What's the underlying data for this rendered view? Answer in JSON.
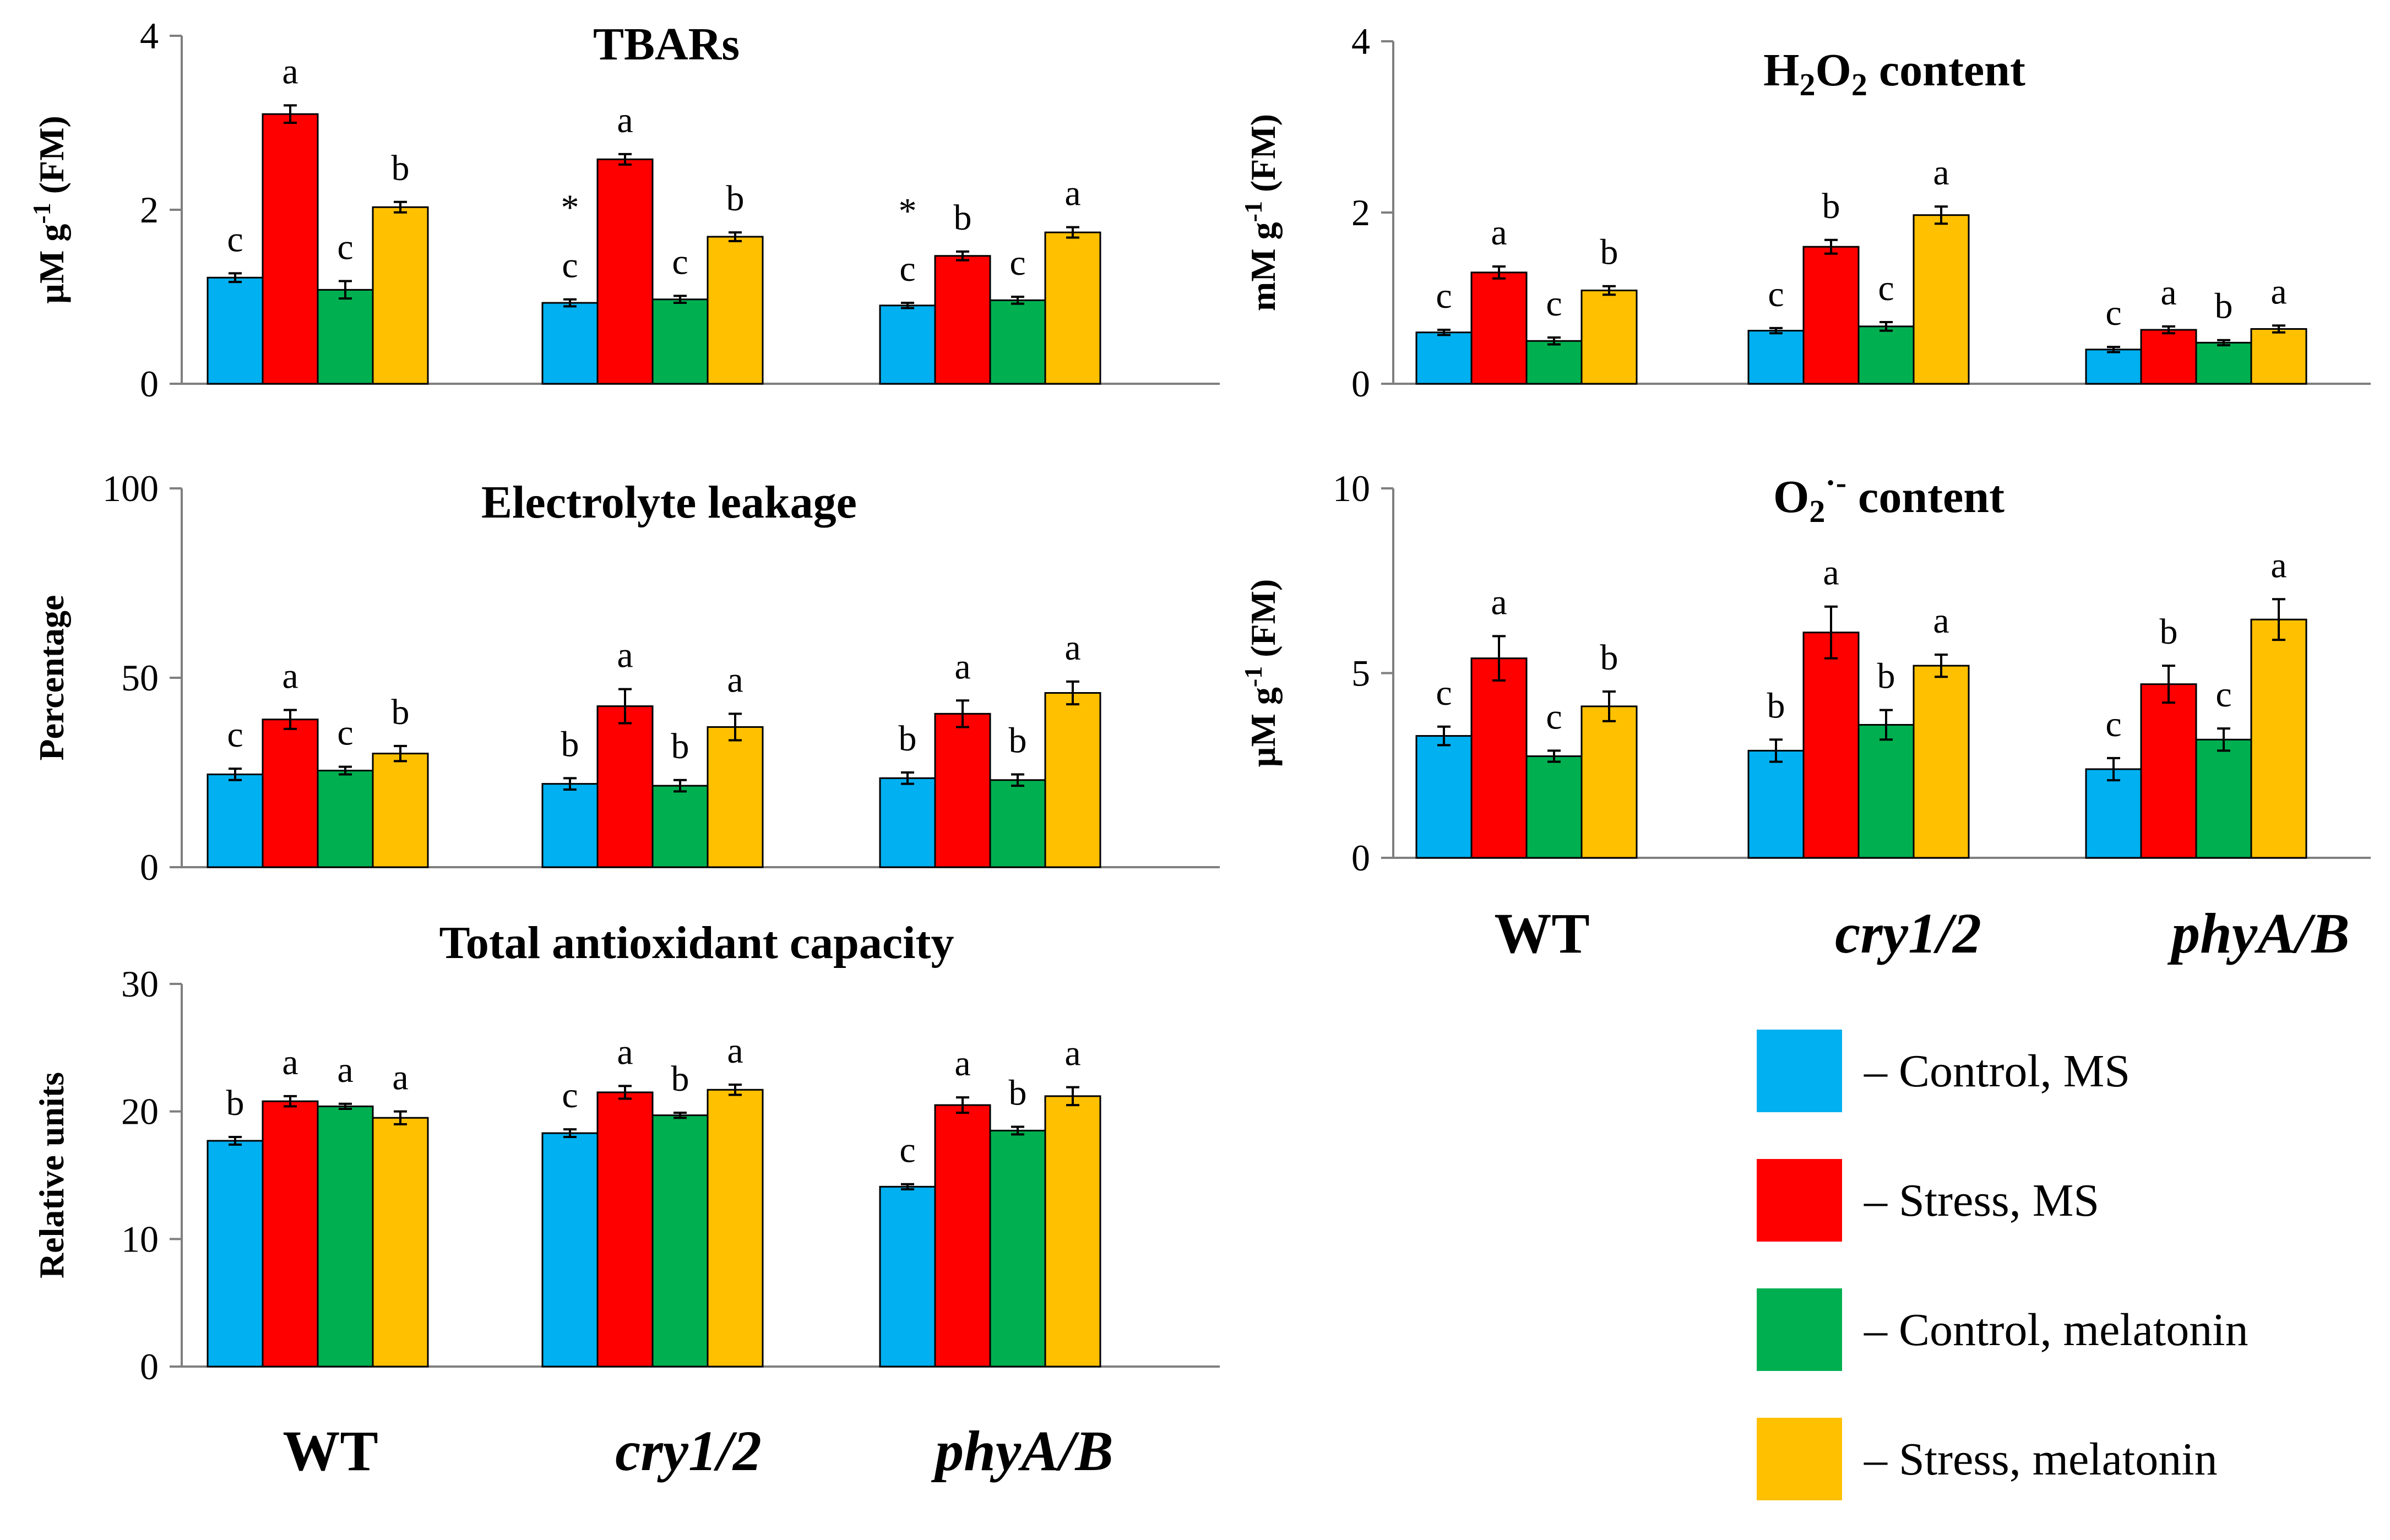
{
  "groups": [
    "WT",
    "cry1/2",
    "phyA/B"
  ],
  "group_italic": [
    false,
    true,
    true
  ],
  "series_colors": [
    "#00B0F0",
    "#FF0000",
    "#00B050",
    "#FFC000"
  ],
  "legend": {
    "items": [
      {
        "label": "– Control, MS",
        "color": "#00B0F0"
      },
      {
        "label": "– Stress, MS",
        "color": "#FF0000"
      },
      {
        "label": "– Control, melatonin",
        "color": "#00B050"
      },
      {
        "label": "– Stress, melatonin",
        "color": "#FFC000"
      }
    ]
  },
  "chart_data": [
    {
      "id": "tbars",
      "type": "bar",
      "title": "TBARs",
      "ylabel_main": "µM g",
      "ylabel_sup": "-1",
      "ylabel_tail": " (FM)",
      "ylim": [
        0,
        4
      ],
      "yticks": [
        0,
        2,
        4
      ],
      "categories": [
        "WT",
        "cry1/2",
        "phyA/B"
      ],
      "series": [
        {
          "name": "Control, MS",
          "values": [
            1.22,
            0.93,
            0.9
          ],
          "errors": [
            0.05,
            0.04,
            0.03
          ],
          "letters": [
            "c",
            "c",
            "c"
          ]
        },
        {
          "name": "Stress, MS",
          "values": [
            3.1,
            2.58,
            1.47
          ],
          "errors": [
            0.1,
            0.06,
            0.05
          ],
          "letters": [
            "a",
            "a",
            "b"
          ]
        },
        {
          "name": "Control, melatonin",
          "values": [
            1.08,
            0.97,
            0.96
          ],
          "errors": [
            0.1,
            0.04,
            0.04
          ],
          "letters": [
            "c",
            "c",
            "c"
          ]
        },
        {
          "name": "Stress, melatonin",
          "values": [
            2.03,
            1.69,
            1.74
          ],
          "errors": [
            0.06,
            0.05,
            0.06
          ],
          "letters": [
            "b",
            "b",
            "a"
          ]
        }
      ],
      "annotations": [
        {
          "text": "*",
          "group": 1,
          "series": 0
        },
        {
          "text": "*",
          "group": 2,
          "series": 0
        }
      ]
    },
    {
      "id": "h2o2",
      "type": "bar",
      "title_main": "H",
      "title_sub1": "2",
      "title_mid": "O",
      "title_sub2": "2",
      "title_tail": " content",
      "ylabel_main": "mM g",
      "ylabel_sup": "-1",
      "ylabel_tail": " (FM)",
      "ylim": [
        0,
        4
      ],
      "yticks": [
        0,
        2,
        4
      ],
      "categories": [
        "WT",
        "cry1/2",
        "phyA/B"
      ],
      "series": [
        {
          "name": "Control, MS",
          "values": [
            0.6,
            0.62,
            0.4
          ],
          "errors": [
            0.03,
            0.03,
            0.03
          ],
          "letters": [
            "c",
            "c",
            "c"
          ]
        },
        {
          "name": "Stress, MS",
          "values": [
            1.3,
            1.6,
            0.63
          ],
          "errors": [
            0.07,
            0.08,
            0.04
          ],
          "letters": [
            "a",
            "b",
            "a"
          ]
        },
        {
          "name": "Control, melatonin",
          "values": [
            0.5,
            0.67,
            0.48
          ],
          "errors": [
            0.04,
            0.05,
            0.03
          ],
          "letters": [
            "c",
            "c",
            "b"
          ]
        },
        {
          "name": "Stress, melatonin",
          "values": [
            1.09,
            1.97,
            0.64
          ],
          "errors": [
            0.05,
            0.1,
            0.04
          ],
          "letters": [
            "b",
            "a",
            "a"
          ]
        }
      ]
    },
    {
      "id": "electrolyte",
      "type": "bar",
      "title": "Electrolyte leakage",
      "ylabel": "Percentage",
      "ylim": [
        0,
        100
      ],
      "yticks": [
        0,
        50,
        100
      ],
      "categories": [
        "WT",
        "cry1/2",
        "phyA/B"
      ],
      "series": [
        {
          "name": "Control, MS",
          "values": [
            24.5,
            22.0,
            23.5
          ],
          "errors": [
            1.5,
            1.5,
            1.5
          ],
          "letters": [
            "c",
            "b",
            "b"
          ]
        },
        {
          "name": "Stress, MS",
          "values": [
            39.0,
            42.5,
            40.5
          ],
          "errors": [
            2.5,
            4.5,
            3.5
          ],
          "letters": [
            "a",
            "a",
            "a"
          ]
        },
        {
          "name": "Control, melatonin",
          "values": [
            25.5,
            21.5,
            23.0
          ],
          "errors": [
            1.0,
            1.5,
            1.5
          ],
          "letters": [
            "c",
            "b",
            "b"
          ]
        },
        {
          "name": "Stress, melatonin",
          "values": [
            30.0,
            37.0,
            46.0
          ],
          "errors": [
            2.0,
            3.5,
            3.0
          ],
          "letters": [
            "b",
            "a",
            "a"
          ]
        }
      ]
    },
    {
      "id": "o2",
      "type": "bar",
      "title_main": "O",
      "title_sub1": "2",
      "title_sup": "·-",
      "title_tail": " content",
      "ylabel_main": "µM g",
      "ylabel_sup": "-1",
      "ylabel_tail": " (FM)",
      "ylim": [
        0,
        10
      ],
      "yticks": [
        0,
        5,
        10
      ],
      "categories": [
        "WT",
        "cry1/2",
        "phyA/B"
      ],
      "series": [
        {
          "name": "Control, MS",
          "values": [
            3.3,
            2.9,
            2.4
          ],
          "errors": [
            0.25,
            0.3,
            0.3
          ],
          "letters": [
            "c",
            "b",
            "c"
          ]
        },
        {
          "name": "Stress, MS",
          "values": [
            5.4,
            6.1,
            4.7
          ],
          "errors": [
            0.6,
            0.7,
            0.5
          ],
          "letters": [
            "a",
            "a",
            "b"
          ]
        },
        {
          "name": "Control, melatonin",
          "values": [
            2.75,
            3.6,
            3.2
          ],
          "errors": [
            0.15,
            0.4,
            0.3
          ],
          "letters": [
            "c",
            "b",
            "c"
          ]
        },
        {
          "name": "Stress, melatonin",
          "values": [
            4.1,
            5.2,
            6.45
          ],
          "errors": [
            0.4,
            0.3,
            0.55
          ],
          "letters": [
            "b",
            "a",
            "a"
          ]
        }
      ]
    },
    {
      "id": "tac",
      "type": "bar",
      "title": "Total antioxidant capacity",
      "ylabel": "Relative units",
      "ylim": [
        0,
        30
      ],
      "yticks": [
        0,
        10,
        20,
        30
      ],
      "categories": [
        "WT",
        "cry1/2",
        "phyA/B"
      ],
      "series": [
        {
          "name": "Control, MS",
          "values": [
            17.7,
            18.3,
            14.1
          ],
          "errors": [
            0.3,
            0.3,
            0.2
          ],
          "letters": [
            "b",
            "c",
            "c"
          ]
        },
        {
          "name": "Stress, MS",
          "values": [
            20.8,
            21.5,
            20.5
          ],
          "errors": [
            0.4,
            0.5,
            0.6
          ],
          "letters": [
            "a",
            "a",
            "a"
          ]
        },
        {
          "name": "Control, melatonin",
          "values": [
            20.4,
            19.7,
            18.5
          ],
          "errors": [
            0.2,
            0.2,
            0.3
          ],
          "letters": [
            "a",
            "b",
            "b"
          ]
        },
        {
          "name": "Stress, melatonin",
          "values": [
            19.5,
            21.7,
            21.2
          ],
          "errors": [
            0.5,
            0.4,
            0.7
          ],
          "letters": [
            "a",
            "a",
            "a"
          ]
        }
      ]
    }
  ]
}
